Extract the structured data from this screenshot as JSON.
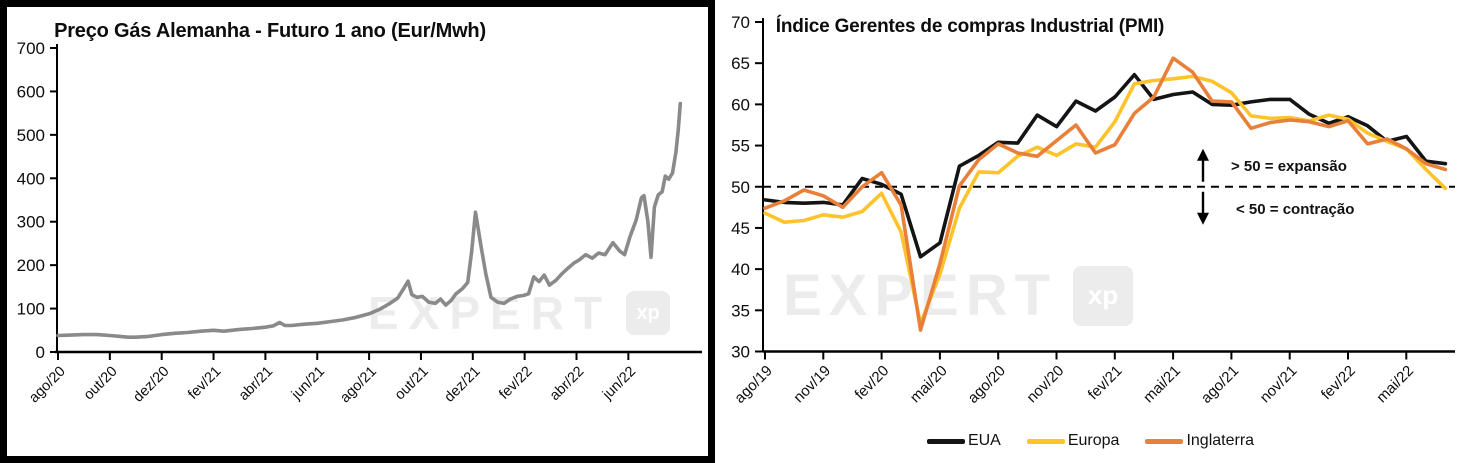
{
  "watermark": {
    "text": "EXPERT",
    "logo": "xp"
  },
  "chart_data": [
    {
      "type": "line",
      "title": "Preço Gás Alemanha - Futuro 1 ano (Eur/Mwh)",
      "xlabel": "",
      "ylabel": "",
      "ylim": [
        0,
        700
      ],
      "y_ticks": [
        0,
        100,
        200,
        300,
        400,
        500,
        600,
        700
      ],
      "x_tick_labels": [
        "ago/20",
        "out/20",
        "dez/20",
        "fev/21",
        "abr/21",
        "jun/21",
        "ago/21",
        "out/21",
        "dez/21",
        "fev/22",
        "abr/22",
        "jun/22"
      ],
      "x_tick_interval_months": 2,
      "x_unit": "months since ago/20",
      "line_color": "#8a8a8a",
      "grid": false,
      "legend_position": "none",
      "points": [
        [
          0,
          38
        ],
        [
          0.5,
          39
        ],
        [
          1,
          40
        ],
        [
          1.5,
          40
        ],
        [
          2,
          38
        ],
        [
          2.4,
          36
        ],
        [
          2.7,
          34
        ],
        [
          3,
          34
        ],
        [
          3.5,
          36
        ],
        [
          4,
          40
        ],
        [
          4.5,
          43
        ],
        [
          5,
          45
        ],
        [
          5.5,
          48
        ],
        [
          6,
          50
        ],
        [
          6.4,
          48
        ],
        [
          7,
          52
        ],
        [
          7.5,
          54
        ],
        [
          8,
          57
        ],
        [
          8.3,
          60
        ],
        [
          8.55,
          68
        ],
        [
          8.75,
          61
        ],
        [
          9,
          61
        ],
        [
          9.5,
          64
        ],
        [
          10,
          66
        ],
        [
          10.5,
          70
        ],
        [
          11,
          74
        ],
        [
          11.5,
          80
        ],
        [
          12,
          88
        ],
        [
          12.4,
          98
        ],
        [
          12.8,
          112
        ],
        [
          13.1,
          124
        ],
        [
          13.35,
          148
        ],
        [
          13.5,
          163
        ],
        [
          13.65,
          132
        ],
        [
          13.85,
          126
        ],
        [
          14.05,
          128
        ],
        [
          14.3,
          115
        ],
        [
          14.55,
          112
        ],
        [
          14.75,
          122
        ],
        [
          14.95,
          108
        ],
        [
          15.15,
          118
        ],
        [
          15.35,
          134
        ],
        [
          15.6,
          146
        ],
        [
          15.8,
          160
        ],
        [
          15.95,
          230
        ],
        [
          16.1,
          322
        ],
        [
          16.3,
          248
        ],
        [
          16.5,
          180
        ],
        [
          16.7,
          126
        ],
        [
          16.95,
          115
        ],
        [
          17.2,
          112
        ],
        [
          17.45,
          122
        ],
        [
          17.7,
          128
        ],
        [
          17.95,
          130
        ],
        [
          18.15,
          134
        ],
        [
          18.35,
          173
        ],
        [
          18.55,
          162
        ],
        [
          18.75,
          177
        ],
        [
          18.95,
          154
        ],
        [
          19.2,
          165
        ],
        [
          19.45,
          181
        ],
        [
          19.65,
          192
        ],
        [
          19.9,
          205
        ],
        [
          20.1,
          212
        ],
        [
          20.35,
          224
        ],
        [
          20.6,
          216
        ],
        [
          20.85,
          228
        ],
        [
          21.1,
          224
        ],
        [
          21.4,
          252
        ],
        [
          21.65,
          233
        ],
        [
          21.85,
          224
        ],
        [
          22.05,
          264
        ],
        [
          22.3,
          304
        ],
        [
          22.5,
          355
        ],
        [
          22.6,
          360
        ],
        [
          22.75,
          300
        ],
        [
          22.87,
          218
        ],
        [
          23.0,
          334
        ],
        [
          23.15,
          362
        ],
        [
          23.3,
          369
        ],
        [
          23.42,
          405
        ],
        [
          23.55,
          398
        ],
        [
          23.7,
          412
        ],
        [
          23.83,
          460
        ],
        [
          23.92,
          510
        ],
        [
          24.0,
          572
        ]
      ]
    },
    {
      "type": "line",
      "title": "Índice Gerentes de compras Industrial (PMI)",
      "xlabel": "",
      "ylabel": "",
      "ylim": [
        30,
        70
      ],
      "y_ticks": [
        30,
        35,
        40,
        45,
        50,
        55,
        60,
        65,
        70
      ],
      "x_tick_labels": [
        "ago/19",
        "nov/19",
        "fev/20",
        "mai/20",
        "ago/20",
        "nov/20",
        "fev/21",
        "mai/21",
        "ago/21",
        "nov/21",
        "fev/22",
        "mai/22"
      ],
      "x_tick_interval_months": 3,
      "grid": false,
      "legend_position": "bottom",
      "categories": [
        "ago/19",
        "set/19",
        "out/19",
        "nov/19",
        "dez/19",
        "jan/20",
        "fev/20",
        "mar/20",
        "abr/20",
        "mai/20",
        "jun/20",
        "jul/20",
        "ago/20",
        "set/20",
        "out/20",
        "nov/20",
        "dez/20",
        "jan/21",
        "fev/21",
        "mar/21",
        "abr/21",
        "mai/21",
        "jun/21",
        "jul/21",
        "ago/21",
        "set/21",
        "out/21",
        "nov/21",
        "dez/21",
        "jan/22",
        "fev/22",
        "mar/22",
        "abr/22",
        "mai/22",
        "jun/22",
        "jul/22"
      ],
      "reference_line": {
        "value": 50,
        "style": "dashed",
        "color": "#000000"
      },
      "annotations": {
        "above": "> 50 = expansão",
        "below": "< 50 = contração"
      },
      "series": [
        {
          "name": "EUA",
          "color": "#141414",
          "values": [
            48.4,
            48.1,
            48.0,
            48.1,
            47.8,
            51.0,
            50.3,
            49.1,
            41.5,
            43.2,
            52.5,
            53.8,
            55.4,
            55.3,
            58.7,
            57.3,
            60.4,
            59.2,
            60.9,
            63.6,
            60.6,
            61.2,
            61.5,
            60.0,
            59.9,
            60.3,
            60.6,
            60.6,
            58.8,
            57.7,
            58.5,
            57.4,
            55.5,
            56.1,
            53.1,
            52.8
          ]
        },
        {
          "name": "Europa",
          "color": "#fdc32b",
          "values": [
            46.8,
            45.7,
            45.9,
            46.6,
            46.3,
            47.0,
            49.2,
            44.5,
            33.4,
            39.4,
            47.4,
            51.8,
            51.7,
            53.7,
            54.8,
            53.8,
            55.2,
            54.8,
            57.9,
            62.5,
            62.9,
            63.1,
            63.4,
            62.8,
            61.4,
            58.6,
            58.3,
            58.4,
            58.0,
            58.7,
            58.2,
            56.5,
            55.5,
            54.6,
            52.1,
            49.8
          ]
        },
        {
          "name": "Inglaterra",
          "color": "#e9803a",
          "values": [
            47.4,
            48.3,
            49.6,
            48.9,
            47.5,
            50.0,
            51.7,
            47.8,
            32.6,
            40.7,
            50.1,
            53.3,
            55.2,
            54.1,
            53.7,
            55.6,
            57.5,
            54.1,
            55.1,
            58.9,
            60.9,
            65.6,
            63.9,
            60.4,
            60.3,
            57.1,
            57.8,
            58.1,
            57.9,
            57.3,
            58.0,
            55.2,
            55.8,
            54.6,
            52.8,
            52.1
          ]
        }
      ]
    }
  ]
}
